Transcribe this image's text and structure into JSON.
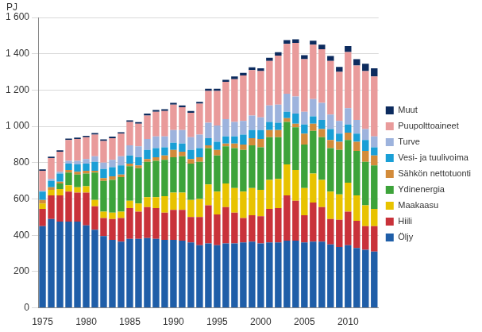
{
  "chart_data": {
    "type": "bar",
    "stacked": true,
    "grid": true,
    "legend": "right",
    "y_label": "PJ",
    "categories": [
      "1975",
      null,
      null,
      null,
      null,
      "1980",
      null,
      null,
      null,
      null,
      "1985",
      null,
      null,
      null,
      null,
      "1990",
      null,
      null,
      null,
      null,
      "1995",
      null,
      null,
      null,
      null,
      "2000",
      null,
      null,
      null,
      null,
      "2005",
      null,
      null,
      null,
      null,
      "2010",
      null,
      null,
      null
    ],
    "ylim": [
      0,
      1600
    ],
    "yticks": [
      0,
      200,
      400,
      600,
      800,
      {
        "value": 1000,
        "label": "1 000"
      },
      {
        "value": 1200,
        "label": "1 200"
      },
      {
        "value": 1400,
        "label": "1 400"
      },
      {
        "value": 1600,
        "label": "1 600"
      }
    ],
    "series": [
      {
        "name": "Öljy",
        "color": "#1f5ea8",
        "values": [
          450,
          490,
          475,
          475,
          475,
          455,
          430,
          395,
          375,
          365,
          380,
          380,
          385,
          380,
          375,
          375,
          370,
          360,
          345,
          355,
          345,
          355,
          355,
          360,
          365,
          355,
          360,
          360,
          370,
          370,
          360,
          365,
          365,
          350,
          335,
          345,
          330,
          320,
          310
        ]
      },
      {
        "name": "Hiili",
        "color": "#c9323a",
        "values": [
          95,
          130,
          145,
          165,
          160,
          180,
          130,
          100,
          115,
          130,
          170,
          150,
          170,
          170,
          150,
          165,
          170,
          140,
          155,
          210,
          170,
          200,
          170,
          135,
          145,
          150,
          185,
          190,
          250,
          220,
          150,
          215,
          190,
          140,
          150,
          185,
          150,
          130,
          140
        ]
      },
      {
        "name": "Maakaasu",
        "color": "#e8c300",
        "values": [
          30,
          30,
          35,
          35,
          30,
          35,
          35,
          35,
          35,
          35,
          40,
          45,
          55,
          60,
          90,
          95,
          95,
          95,
          100,
          115,
          125,
          130,
          135,
          145,
          150,
          145,
          160,
          160,
          170,
          170,
          150,
          160,
          150,
          150,
          140,
          160,
          140,
          115,
          95
        ]
      },
      {
        "name": "Ydinenergia",
        "color": "#3da33a",
        "values": [
          0,
          0,
          30,
          70,
          70,
          70,
          150,
          170,
          180,
          190,
          190,
          195,
          195,
          200,
          200,
          195,
          200,
          200,
          205,
          200,
          200,
          205,
          220,
          230,
          235,
          235,
          235,
          230,
          235,
          235,
          240,
          235,
          235,
          240,
          245,
          235,
          245,
          240,
          240
        ]
      },
      {
        "name": "Sähkön nettotuonti",
        "color": "#d38b3a",
        "values": [
          20,
          15,
          10,
          15,
          15,
          15,
          10,
          15,
          20,
          15,
          15,
          15,
          15,
          20,
          25,
          40,
          25,
          25,
          25,
          15,
          30,
          15,
          25,
          30,
          40,
          45,
          40,
          40,
          20,
          20,
          60,
          40,
          45,
          45,
          45,
          40,
          50,
          60,
          55
        ]
      },
      {
        "name": "Vesi- ja tuulivoima",
        "color": "#1a9fd6",
        "values": [
          45,
          35,
          45,
          35,
          40,
          40,
          50,
          50,
          50,
          50,
          45,
          45,
          50,
          50,
          45,
          40,
          45,
          50,
          50,
          40,
          45,
          40,
          40,
          55,
          45,
          50,
          45,
          40,
          35,
          55,
          50,
          40,
          50,
          60,
          45,
          45,
          45,
          60,
          45
        ]
      },
      {
        "name": "Turve",
        "color": "#9db3dd",
        "values": [
          5,
          10,
          10,
          15,
          20,
          25,
          30,
          35,
          40,
          50,
          55,
          60,
          60,
          65,
          60,
          70,
          75,
          70,
          75,
          85,
          90,
          95,
          80,
          75,
          80,
          70,
          90,
          100,
          100,
          95,
          70,
          95,
          95,
          80,
          70,
          90,
          75,
          60,
          60
        ]
      },
      {
        "name": "Puupolttoaineet",
        "color": "#e99b9b",
        "values": [
          110,
          115,
          110,
          115,
          120,
          120,
          120,
          120,
          120,
          125,
          130,
          125,
          130,
          135,
          140,
          140,
          125,
          135,
          170,
          175,
          190,
          205,
          235,
          250,
          250,
          255,
          245,
          270,
          275,
          295,
          290,
          300,
          295,
          295,
          270,
          310,
          300,
          320,
          330
        ]
      },
      {
        "name": "Muut",
        "color": "#0c2b5e",
        "values": [
          8,
          8,
          8,
          8,
          8,
          8,
          8,
          8,
          8,
          8,
          8,
          8,
          10,
          10,
          10,
          10,
          10,
          10,
          10,
          12,
          12,
          12,
          15,
          15,
          15,
          15,
          18,
          18,
          20,
          20,
          22,
          22,
          25,
          28,
          28,
          32,
          35,
          40,
          45
        ]
      }
    ]
  }
}
